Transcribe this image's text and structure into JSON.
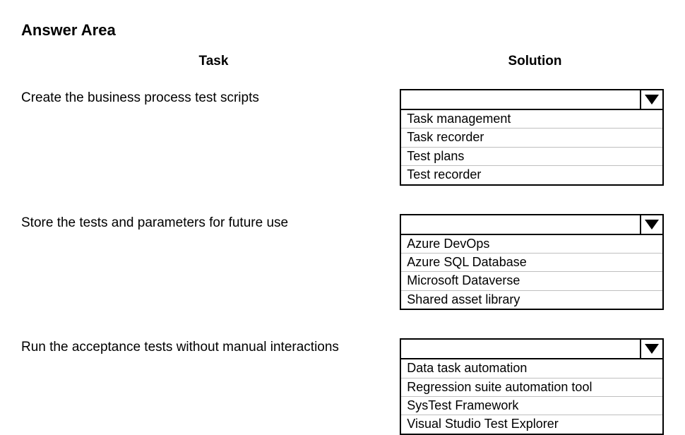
{
  "title": "Answer Area",
  "headers": {
    "task": "Task",
    "solution": "Solution"
  },
  "rows": [
    {
      "task": "Create the business process test scripts",
      "selected": "",
      "options": [
        "Task management",
        "Task recorder",
        "Test plans",
        "Test recorder"
      ]
    },
    {
      "task": "Store the tests and parameters for future use",
      "selected": "",
      "options": [
        "Azure DevOps",
        "Azure SQL Database",
        "Microsoft Dataverse",
        "Shared asset library"
      ]
    },
    {
      "task": "Run the acceptance tests without manual interactions",
      "selected": "",
      "options": [
        "Data task automation",
        "Regression suite automation tool",
        "SysTest Framework",
        "Visual Studio Test Explorer"
      ]
    }
  ],
  "colors": {
    "background": "#ffffff",
    "text": "#000000",
    "border": "#000000",
    "option_divider": "#bfbfbf"
  }
}
